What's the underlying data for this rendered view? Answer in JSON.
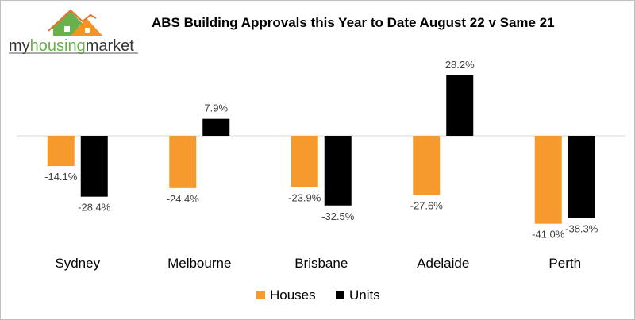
{
  "logo": {
    "text": "myhousingmarket",
    "colors": {
      "green": "#6ab04c",
      "orange": "#f7941d"
    }
  },
  "chart_data": {
    "type": "bar",
    "title": "ABS Building Approvals this Year to Date August 22 v Same 21",
    "categories": [
      "Sydney",
      "Melbourne",
      "Brisbane",
      "Adelaide",
      "Perth"
    ],
    "series": [
      {
        "name": "Houses",
        "color": "#f79a2e",
        "values": [
          -14.1,
          -24.4,
          -23.9,
          -27.6,
          -41.0
        ],
        "labels": [
          "-14.1%",
          "-24.4%",
          "-23.9%",
          "-27.6%",
          "-41.0%"
        ]
      },
      {
        "name": "Units",
        "color": "#000000",
        "values": [
          -28.4,
          7.9,
          -32.5,
          28.2,
          -38.3
        ],
        "labels": [
          "-28.4%",
          "7.9%",
          "-32.5%",
          "28.2%",
          "-38.3%"
        ]
      }
    ],
    "grid": false,
    "legend": "bottom"
  }
}
